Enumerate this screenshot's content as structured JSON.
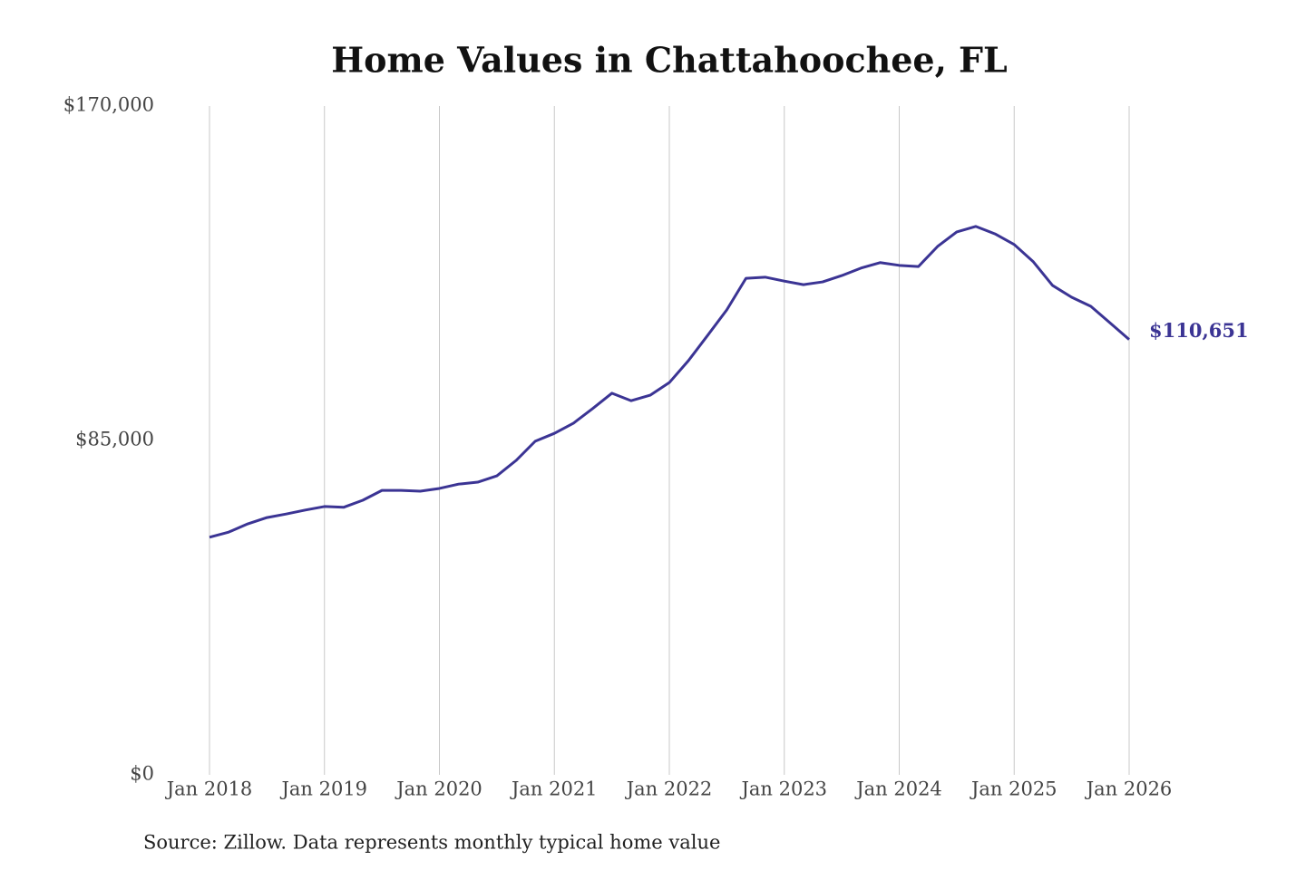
{
  "chart_data": {
    "type": "line",
    "title": "Home Values in Chattahoochee, FL",
    "source": "Source: Zillow. Data represents monthly typical home value",
    "categories": [
      "Jan 2018",
      null,
      null,
      null,
      null,
      null,
      "Jan 2019",
      null,
      null,
      null,
      null,
      null,
      "Jan 2020",
      null,
      null,
      null,
      null,
      null,
      "Jan 2021",
      null,
      null,
      null,
      null,
      null,
      "Jan 2022",
      null,
      null,
      null,
      null,
      null,
      "Jan 2023",
      null,
      null,
      null,
      null,
      null,
      "Jan 2024",
      null,
      null,
      null,
      null,
      null,
      "Jan 2025",
      null,
      null,
      null,
      null,
      null,
      "Jan 2026"
    ],
    "series": [
      {
        "name": "Typical home value",
        "color": "#3b3494",
        "values": [
          60400,
          61700,
          63800,
          65400,
          66300,
          67300,
          68200,
          68000,
          69800,
          72300,
          72300,
          72100,
          72800,
          73900,
          74400,
          76000,
          79900,
          84800,
          86800,
          89400,
          93100,
          97000,
          95100,
          96500,
          99700,
          105300,
          111700,
          118200,
          126200,
          126500,
          125500,
          124600,
          125300,
          126900,
          128800,
          130200,
          129500,
          129200,
          134300,
          138000,
          139400,
          137500,
          134800,
          130400,
          124400,
          121400,
          119100,
          114900,
          110651
        ],
        "value_labels": [
          null,
          null,
          null,
          null,
          null,
          null,
          null,
          null,
          null,
          null,
          null,
          null,
          null,
          null,
          null,
          null,
          null,
          null,
          null,
          null,
          null,
          null,
          null,
          null,
          null,
          null,
          null,
          null,
          null,
          null,
          null,
          null,
          null,
          null,
          null,
          null,
          null,
          null,
          null,
          null,
          null,
          null,
          null,
          null,
          null,
          null,
          null,
          null,
          "$110,651"
        ]
      }
    ],
    "ylim": [
      0,
      170000
    ],
    "yticks": [
      {
        "value": 0,
        "label": "$0"
      },
      {
        "value": 85000,
        "label": "$85,000"
      },
      {
        "value": 170000,
        "label": "$170,000"
      }
    ],
    "grid": true
  }
}
